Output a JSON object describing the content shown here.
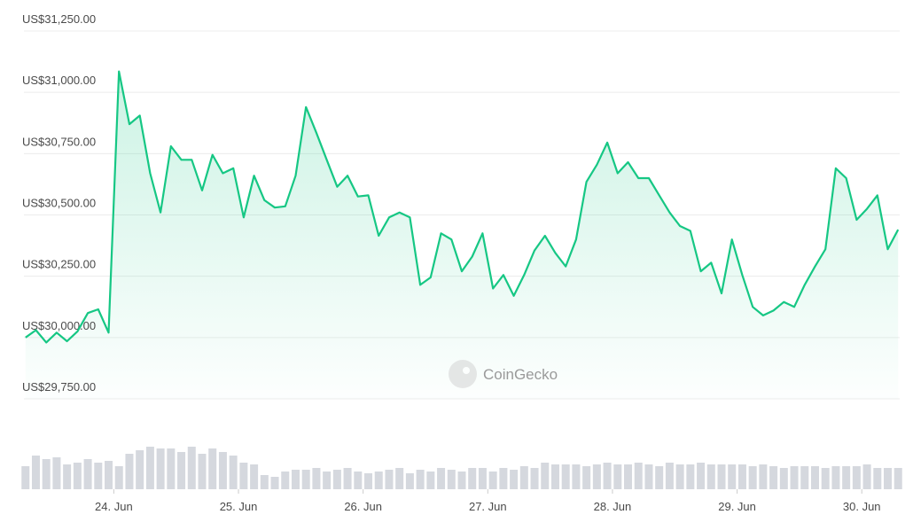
{
  "chart_data": [
    {
      "type": "line",
      "color": "#16c784",
      "grid": true,
      "x": [
        -17,
        -15,
        -13,
        -11,
        -9,
        -7,
        -5,
        -3,
        -1,
        1,
        3,
        5,
        7,
        9,
        11,
        13,
        15,
        17,
        19,
        21,
        23,
        25,
        27,
        29,
        31,
        33,
        35,
        37,
        39,
        41,
        43,
        45,
        47,
        49,
        51,
        53,
        55,
        57,
        59,
        61,
        63,
        65,
        67,
        69,
        71,
        73,
        75,
        77,
        79,
        81,
        83,
        85,
        87,
        89,
        91,
        93,
        95,
        97,
        99,
        101,
        103,
        105,
        107,
        109,
        111,
        113,
        115,
        117,
        119,
        121,
        123,
        125,
        127,
        129,
        131,
        133,
        135,
        137,
        139,
        141,
        143,
        145,
        147,
        149,
        151
      ],
      "values": [
        30000,
        30030,
        29980,
        30020,
        29985,
        30025,
        30100,
        30115,
        30020,
        31085,
        30870,
        30905,
        30670,
        30510,
        30780,
        30725,
        30725,
        30600,
        30745,
        30670,
        30690,
        30490,
        30660,
        30560,
        30530,
        30535,
        30660,
        30940,
        30835,
        30725,
        30615,
        30660,
        30575,
        30580,
        30415,
        30490,
        30510,
        30490,
        30215,
        30245,
        30425,
        30400,
        30270,
        30330,
        30425,
        30200,
        30255,
        30170,
        30255,
        30355,
        30415,
        30345,
        30290,
        30400,
        30635,
        30705,
        30795,
        30670,
        30715,
        30650,
        30650,
        30580,
        30510,
        30455,
        30435,
        30270,
        30305,
        30180,
        30400,
        30255,
        30125,
        30090,
        30110,
        30145,
        30125,
        30215,
        30290,
        30360,
        30690,
        30650,
        30480,
        30525,
        30580,
        30360,
        30440
      ],
      "xlim": [
        -17.3,
        151.3
      ],
      "ylim": [
        29750,
        31250
      ],
      "yticks": [
        {
          "value": 29750,
          "label": "US$29,750.00"
        },
        {
          "value": 30000,
          "label": "US$30,000.00"
        },
        {
          "value": 30250,
          "label": "US$30,250.00"
        },
        {
          "value": 30500,
          "label": "US$30,500.00"
        },
        {
          "value": 30750,
          "label": "US$30,750.00"
        },
        {
          "value": 31000,
          "label": "US$31,000.00"
        },
        {
          "value": 31250,
          "label": "US$31,250.00"
        }
      ],
      "xticks": [
        {
          "value": 0,
          "label": "24. Jun"
        },
        {
          "value": 24,
          "label": "25. Jun"
        },
        {
          "value": 48,
          "label": "26. Jun"
        },
        {
          "value": 72,
          "label": "27. Jun"
        },
        {
          "value": 96,
          "label": "28. Jun"
        },
        {
          "value": 120,
          "label": "29. Jun"
        },
        {
          "value": 144,
          "label": "30. Jun"
        }
      ],
      "watermark": "CoinGecko"
    },
    {
      "type": "bar",
      "color": "#d5d8de",
      "x": [
        -17,
        -15,
        -13,
        -11,
        -9,
        -7,
        -5,
        -3,
        -1,
        1,
        3,
        5,
        7,
        9,
        11,
        13,
        15,
        17,
        19,
        21,
        23,
        25,
        27,
        29,
        31,
        33,
        35,
        37,
        39,
        41,
        43,
        45,
        47,
        49,
        51,
        53,
        55,
        57,
        59,
        61,
        63,
        65,
        67,
        69,
        71,
        73,
        75,
        77,
        79,
        81,
        83,
        85,
        87,
        89,
        91,
        93,
        95,
        97,
        99,
        101,
        103,
        105,
        107,
        109,
        111,
        113,
        115,
        117,
        119,
        121,
        123,
        125,
        127,
        129,
        131,
        133,
        135,
        137,
        139,
        141,
        143,
        145,
        147,
        149,
        151
      ],
      "values": [
        26,
        38,
        34,
        36,
        28,
        30,
        34,
        30,
        32,
        26,
        40,
        44,
        48,
        46,
        46,
        42,
        48,
        40,
        46,
        42,
        38,
        30,
        28,
        16,
        14,
        20,
        22,
        22,
        24,
        20,
        22,
        24,
        20,
        18,
        20,
        22,
        24,
        18,
        22,
        20,
        24,
        22,
        20,
        24,
        24,
        20,
        24,
        22,
        26,
        24,
        30,
        28,
        28,
        28,
        26,
        28,
        30,
        28,
        28,
        30,
        28,
        26,
        30,
        28,
        28,
        30,
        28,
        28,
        28,
        28,
        26,
        28,
        26,
        24,
        26,
        26,
        26,
        24,
        26,
        26,
        26,
        28,
        24,
        24,
        24
      ],
      "ylim": [
        0,
        60
      ]
    }
  ]
}
